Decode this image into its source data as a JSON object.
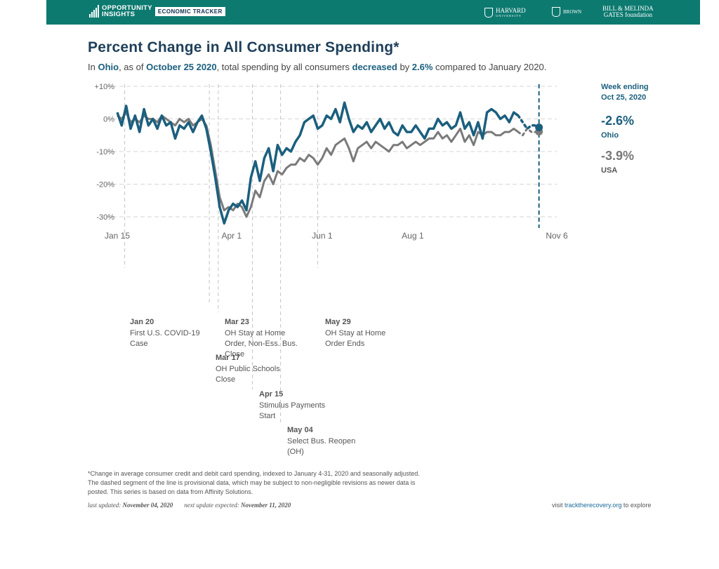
{
  "header": {
    "logo_line1": "OPPORTUNITY",
    "logo_line2": "INSIGHTS",
    "tracker_badge": "ECONOMIC TRACKER",
    "partner_harvard": "HARVARD",
    "partner_harvard_sub": "UNIVERSITY",
    "partner_brown": "BROWN",
    "partner_gates_line1": "BILL & MELINDA",
    "partner_gates_line2": "GATES foundation"
  },
  "title": "Percent Change in All Consumer Spending*",
  "subtitle": {
    "in": "In ",
    "state": "Ohio",
    "as_of": ", as of ",
    "date": "October 25 2020",
    "mid": ", total spending by all consumers ",
    "direction": "decreased",
    "by": " by ",
    "value": "2.6%",
    "tail": " compared to January 2020."
  },
  "legend": {
    "week_ending_label": "Week ending",
    "week_ending_date": "Oct 25, 2020",
    "ohio_value": "-2.6%",
    "ohio_label": "Ohio",
    "usa_value": "-3.9%",
    "usa_label": "USA"
  },
  "colors": {
    "ohio": "#1b5f7e",
    "usa": "#7a7a7a",
    "grid": "#d6d6d6",
    "event_line": "#c4c4c4",
    "header_bg": "#0d7a70"
  },
  "chart_data": {
    "type": "line",
    "xlabel": "",
    "ylabel": "",
    "x_ticks": [
      "Jan 15",
      "Apr 1",
      "Jun 1",
      "Aug 1",
      "Nov 6"
    ],
    "x_tick_dates": [
      "2020-01-15",
      "2020-04-01",
      "2020-06-01",
      "2020-08-01",
      "2020-11-06"
    ],
    "y_ticks": [
      "+10%",
      "0%",
      "-10%",
      "-20%",
      "-30%"
    ],
    "y_tick_values": [
      10,
      0,
      -10,
      -20,
      -30
    ],
    "xlim": [
      "2020-01-15",
      "2020-11-06"
    ],
    "ylim": [
      -33,
      11
    ],
    "grid": true,
    "provisional_from": "2020-10-11",
    "series": [
      {
        "name": "Ohio",
        "x": [
          "2020-01-15",
          "2020-01-18",
          "2020-01-21",
          "2020-01-24",
          "2020-01-27",
          "2020-01-30",
          "2020-02-02",
          "2020-02-05",
          "2020-02-08",
          "2020-02-11",
          "2020-02-14",
          "2020-02-17",
          "2020-02-20",
          "2020-02-23",
          "2020-02-26",
          "2020-02-29",
          "2020-03-03",
          "2020-03-06",
          "2020-03-09",
          "2020-03-12",
          "2020-03-15",
          "2020-03-18",
          "2020-03-21",
          "2020-03-24",
          "2020-03-27",
          "2020-03-30",
          "2020-04-02",
          "2020-04-05",
          "2020-04-08",
          "2020-04-11",
          "2020-04-14",
          "2020-04-17",
          "2020-04-20",
          "2020-04-23",
          "2020-04-26",
          "2020-04-29",
          "2020-05-02",
          "2020-05-05",
          "2020-05-08",
          "2020-05-11",
          "2020-05-14",
          "2020-05-17",
          "2020-05-20",
          "2020-05-23",
          "2020-05-26",
          "2020-05-29",
          "2020-06-01",
          "2020-06-04",
          "2020-06-07",
          "2020-06-10",
          "2020-06-13",
          "2020-06-16",
          "2020-06-19",
          "2020-06-22",
          "2020-06-25",
          "2020-06-28",
          "2020-07-01",
          "2020-07-04",
          "2020-07-07",
          "2020-07-10",
          "2020-07-13",
          "2020-07-16",
          "2020-07-19",
          "2020-07-22",
          "2020-07-25",
          "2020-07-28",
          "2020-07-31",
          "2020-08-03",
          "2020-08-06",
          "2020-08-09",
          "2020-08-12",
          "2020-08-15",
          "2020-08-18",
          "2020-08-21",
          "2020-08-24",
          "2020-08-27",
          "2020-08-30",
          "2020-09-02",
          "2020-09-05",
          "2020-09-08",
          "2020-09-11",
          "2020-09-14",
          "2020-09-17",
          "2020-09-20",
          "2020-09-23",
          "2020-09-26",
          "2020-09-29",
          "2020-10-02",
          "2020-10-05",
          "2020-10-08",
          "2020-10-11",
          "2020-10-14",
          "2020-10-17",
          "2020-10-20",
          "2020-10-23",
          "2020-10-25"
        ],
        "values": [
          2,
          -2,
          4,
          -3,
          1,
          -4,
          3,
          -2,
          0,
          -3,
          1,
          -2,
          -1,
          -6,
          -2,
          -3,
          -1,
          -4,
          -1,
          1,
          -3,
          -10,
          -18,
          -27,
          -32,
          -28,
          -26,
          -27,
          -25,
          -28,
          -18,
          -13,
          -19,
          -12,
          -9,
          -16,
          -8,
          -11,
          -9,
          -10,
          -7,
          -5,
          -1,
          0,
          1,
          -3,
          -2,
          1,
          0,
          3,
          -1,
          5,
          0,
          -4,
          -2,
          -3,
          -1,
          -4,
          -2,
          0,
          -3,
          -1,
          -4,
          -5,
          -2,
          -4,
          -4,
          -2,
          -4,
          -6,
          -3,
          -3,
          0,
          -2,
          -1,
          -3,
          -2,
          2,
          -3,
          -1,
          -5,
          -1,
          -6,
          2,
          3,
          2,
          0,
          1,
          -1,
          2,
          1,
          -1,
          -3,
          -2,
          -2,
          -2.6
        ]
      },
      {
        "name": "USA",
        "x": [
          "2020-01-15",
          "2020-01-18",
          "2020-01-21",
          "2020-01-24",
          "2020-01-27",
          "2020-01-30",
          "2020-02-02",
          "2020-02-05",
          "2020-02-08",
          "2020-02-11",
          "2020-02-14",
          "2020-02-17",
          "2020-02-20",
          "2020-02-23",
          "2020-02-26",
          "2020-02-29",
          "2020-03-03",
          "2020-03-06",
          "2020-03-09",
          "2020-03-12",
          "2020-03-15",
          "2020-03-18",
          "2020-03-21",
          "2020-03-24",
          "2020-03-27",
          "2020-03-30",
          "2020-04-02",
          "2020-04-05",
          "2020-04-08",
          "2020-04-11",
          "2020-04-14",
          "2020-04-17",
          "2020-04-20",
          "2020-04-23",
          "2020-04-26",
          "2020-04-29",
          "2020-05-02",
          "2020-05-05",
          "2020-05-08",
          "2020-05-11",
          "2020-05-14",
          "2020-05-17",
          "2020-05-20",
          "2020-05-23",
          "2020-05-26",
          "2020-05-29",
          "2020-06-01",
          "2020-06-04",
          "2020-06-07",
          "2020-06-10",
          "2020-06-13",
          "2020-06-16",
          "2020-06-19",
          "2020-06-22",
          "2020-06-25",
          "2020-06-28",
          "2020-07-01",
          "2020-07-04",
          "2020-07-07",
          "2020-07-10",
          "2020-07-13",
          "2020-07-16",
          "2020-07-19",
          "2020-07-22",
          "2020-07-25",
          "2020-07-28",
          "2020-07-31",
          "2020-08-03",
          "2020-08-06",
          "2020-08-09",
          "2020-08-12",
          "2020-08-15",
          "2020-08-18",
          "2020-08-21",
          "2020-08-24",
          "2020-08-27",
          "2020-08-30",
          "2020-09-02",
          "2020-09-05",
          "2020-09-08",
          "2020-09-11",
          "2020-09-14",
          "2020-09-17",
          "2020-09-20",
          "2020-09-23",
          "2020-09-26",
          "2020-09-29",
          "2020-10-02",
          "2020-10-05",
          "2020-10-08",
          "2020-10-11",
          "2020-10-14",
          "2020-10-17",
          "2020-10-20",
          "2020-10-23",
          "2020-10-25"
        ],
        "values": [
          1,
          0,
          2,
          -1,
          0,
          -1,
          1,
          0,
          0,
          -1,
          1,
          0,
          -1,
          -2,
          0,
          -1,
          0,
          -2,
          -1,
          0,
          -2,
          -8,
          -16,
          -24,
          -28,
          -27,
          -28,
          -26,
          -27,
          -30,
          -27,
          -22,
          -24,
          -19,
          -17,
          -20,
          -16,
          -17,
          -15,
          -14,
          -14,
          -12,
          -13,
          -11,
          -12,
          -14,
          -12,
          -9,
          -11,
          -8,
          -7,
          -6,
          -9,
          -13,
          -9,
          -8,
          -7,
          -9,
          -7,
          -8,
          -9,
          -10,
          -8,
          -8,
          -7,
          -9,
          -8,
          -7,
          -8,
          -7,
          -6,
          -6,
          -4,
          -6,
          -5,
          -7,
          -5,
          -3,
          -7,
          -5,
          -8,
          -4,
          -5,
          -4,
          -4,
          -5,
          -5,
          -4,
          -4,
          -3,
          -4,
          -5,
          -3,
          -4,
          -4,
          -3.9
        ]
      }
    ],
    "events": [
      {
        "date": "Jan 20",
        "x": "2020-01-20",
        "label": "First U.S. COVID-19 Case"
      },
      {
        "date": "Mar 23",
        "x": "2020-03-23",
        "label": "OH Stay at Home Order, Non-Ess. Bus. Close"
      },
      {
        "date": "Mar 17",
        "x": "2020-03-17",
        "label": "OH Public Schools Close"
      },
      {
        "date": "Apr 15",
        "x": "2020-04-15",
        "label": "Stimulus Payments Start"
      },
      {
        "date": "May 04",
        "x": "2020-05-04",
        "label": "Select Bus. Reopen (OH)"
      },
      {
        "date": "May 29",
        "x": "2020-05-29",
        "label": "OH Stay at Home Order Ends"
      }
    ]
  },
  "footnote": {
    "line1": "*Change in average consumer credit and debit card spending, indexed to January 4-31, 2020 and seasonally adjusted.",
    "line2": "The dashed segment of the line is provisional data, which may be subject to non-negligible revisions as newer data is",
    "line3": "posted. This series is based on data from Affinity Solutions."
  },
  "updated": {
    "last_label": "last updated: ",
    "last_date": "November 04, 2020",
    "next_label": "next update expected: ",
    "next_date": "November 11, 2020"
  },
  "visit": {
    "pre": "visit ",
    "link": "tracktherecovery.org",
    "post": " to explore"
  }
}
